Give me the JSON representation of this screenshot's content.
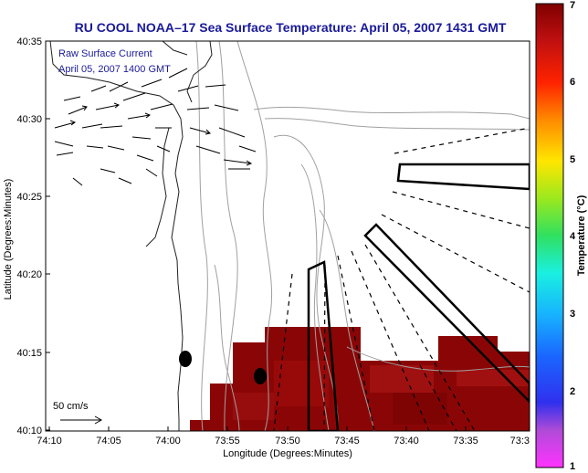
{
  "title": "RU COOL  NOAA–17  Sea Surface Temperature:  April 05, 2007 1431 GMT",
  "legend": {
    "line1": "Raw Surface Current",
    "line2": "April 05, 2007 1400 GMT",
    "scale_label": "50 cm/s"
  },
  "axes": {
    "xlabel": "Longitude (Degrees:Minutes)",
    "ylabel": "Latitude (Degrees:Minutes)",
    "xticks": [
      "74:10",
      "74:05",
      "74:00",
      "73:55",
      "73:50",
      "73:45",
      "73:40",
      "73:35",
      "73:3"
    ],
    "yticks": [
      "40:35",
      "40:30",
      "40:25",
      "40:20",
      "40:15",
      "40:10"
    ]
  },
  "colorbar": {
    "label": "Temperature (°C)",
    "ticks": [
      "7",
      "6",
      "5",
      "4",
      "3",
      "2",
      "1"
    ]
  },
  "colors": {
    "title": "#1a1a9a",
    "sst_dark": "#8b0000",
    "sst_mid": "#a01010",
    "contour": "#a0a0a0"
  }
}
